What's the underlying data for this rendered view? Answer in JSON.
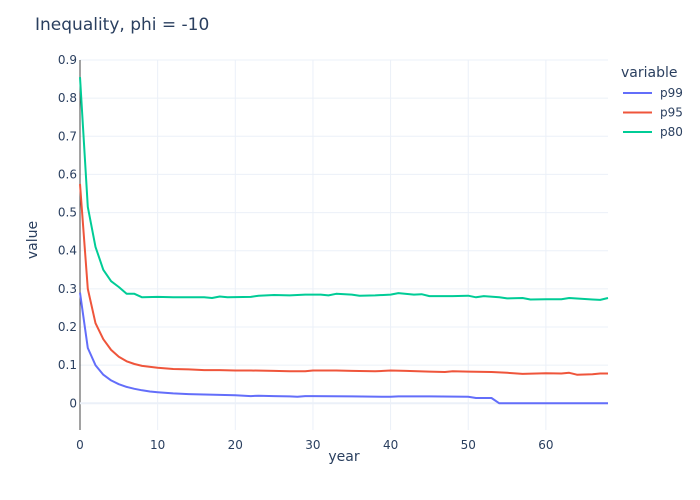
{
  "chart_data": {
    "type": "line",
    "title": "Inequality, phi = -10",
    "xlabel": "year",
    "ylabel": "value",
    "xlim": [
      0,
      68
    ],
    "ylim": [
      -0.07,
      0.9
    ],
    "x_ticks": [
      0,
      10,
      20,
      30,
      40,
      50,
      60
    ],
    "y_ticks": [
      0,
      0.1,
      0.2,
      0.3,
      0.4,
      0.5,
      0.6,
      0.7,
      0.8,
      0.9
    ],
    "x_tick_labels": [
      "0",
      "10",
      "20",
      "30",
      "40",
      "50",
      "60"
    ],
    "y_tick_labels": [
      "0",
      "0.1",
      "0.2",
      "0.3",
      "0.4",
      "0.5",
      "0.6",
      "0.7",
      "0.8",
      "0.9"
    ],
    "grid": true,
    "legend": {
      "title": "variable",
      "position": "top-right"
    },
    "series": [
      {
        "name": "p99",
        "color": "#636efa",
        "points": [
          [
            0,
            0.29
          ],
          [
            1,
            0.145
          ],
          [
            2,
            0.1
          ],
          [
            3,
            0.075
          ],
          [
            4,
            0.06
          ],
          [
            5,
            0.05
          ],
          [
            6,
            0.043
          ],
          [
            7,
            0.038
          ],
          [
            8,
            0.034
          ],
          [
            9,
            0.031
          ],
          [
            10,
            0.029
          ],
          [
            12,
            0.026
          ],
          [
            14,
            0.024
          ],
          [
            16,
            0.023
          ],
          [
            18,
            0.022
          ],
          [
            20,
            0.021
          ],
          [
            22,
            0.019
          ],
          [
            23,
            0.02
          ],
          [
            25,
            0.019
          ],
          [
            27,
            0.018
          ],
          [
            28,
            0.017
          ],
          [
            29,
            0.019
          ],
          [
            30,
            0.019
          ],
          [
            35,
            0.018
          ],
          [
            40,
            0.017
          ],
          [
            41,
            0.018
          ],
          [
            45,
            0.018
          ],
          [
            50,
            0.017
          ],
          [
            51,
            0.014
          ],
          [
            53,
            0.014
          ],
          [
            54,
            0.0
          ],
          [
            68,
            0.0
          ]
        ]
      },
      {
        "name": "p95",
        "color": "#ef553b",
        "points": [
          [
            0,
            0.575
          ],
          [
            1,
            0.3
          ],
          [
            2,
            0.21
          ],
          [
            3,
            0.168
          ],
          [
            4,
            0.14
          ],
          [
            5,
            0.122
          ],
          [
            6,
            0.11
          ],
          [
            7,
            0.103
          ],
          [
            8,
            0.098
          ],
          [
            10,
            0.093
          ],
          [
            12,
            0.09
          ],
          [
            14,
            0.089
          ],
          [
            16,
            0.087
          ],
          [
            18,
            0.087
          ],
          [
            20,
            0.086
          ],
          [
            22,
            0.086
          ],
          [
            25,
            0.085
          ],
          [
            27,
            0.084
          ],
          [
            29,
            0.084
          ],
          [
            30,
            0.086
          ],
          [
            33,
            0.086
          ],
          [
            35,
            0.085
          ],
          [
            38,
            0.084
          ],
          [
            40,
            0.086
          ],
          [
            42,
            0.085
          ],
          [
            45,
            0.083
          ],
          [
            47,
            0.082
          ],
          [
            48,
            0.084
          ],
          [
            50,
            0.083
          ],
          [
            53,
            0.082
          ],
          [
            55,
            0.08
          ],
          [
            57,
            0.077
          ],
          [
            60,
            0.079
          ],
          [
            62,
            0.078
          ],
          [
            63,
            0.08
          ],
          [
            64,
            0.075
          ],
          [
            66,
            0.076
          ],
          [
            67,
            0.078
          ],
          [
            68,
            0.078
          ]
        ]
      },
      {
        "name": "p80",
        "color": "#00cc96",
        "points": [
          [
            0,
            0.855
          ],
          [
            1,
            0.515
          ],
          [
            2,
            0.41
          ],
          [
            3,
            0.35
          ],
          [
            4,
            0.32
          ],
          [
            5,
            0.305
          ],
          [
            6,
            0.287
          ],
          [
            7,
            0.287
          ],
          [
            8,
            0.278
          ],
          [
            10,
            0.279
          ],
          [
            12,
            0.278
          ],
          [
            14,
            0.278
          ],
          [
            16,
            0.278
          ],
          [
            17,
            0.276
          ],
          [
            18,
            0.28
          ],
          [
            19,
            0.278
          ],
          [
            22,
            0.279
          ],
          [
            23,
            0.282
          ],
          [
            25,
            0.284
          ],
          [
            27,
            0.283
          ],
          [
            29,
            0.285
          ],
          [
            31,
            0.285
          ],
          [
            32,
            0.283
          ],
          [
            33,
            0.287
          ],
          [
            35,
            0.285
          ],
          [
            36,
            0.282
          ],
          [
            38,
            0.283
          ],
          [
            40,
            0.285
          ],
          [
            41,
            0.289
          ],
          [
            43,
            0.285
          ],
          [
            44,
            0.286
          ],
          [
            45,
            0.281
          ],
          [
            48,
            0.281
          ],
          [
            50,
            0.282
          ],
          [
            51,
            0.278
          ],
          [
            52,
            0.281
          ],
          [
            54,
            0.278
          ],
          [
            55,
            0.275
          ],
          [
            57,
            0.276
          ],
          [
            58,
            0.272
          ],
          [
            60,
            0.273
          ],
          [
            62,
            0.273
          ],
          [
            63,
            0.276
          ],
          [
            66,
            0.272
          ],
          [
            67,
            0.271
          ],
          [
            68,
            0.276
          ]
        ]
      }
    ]
  }
}
